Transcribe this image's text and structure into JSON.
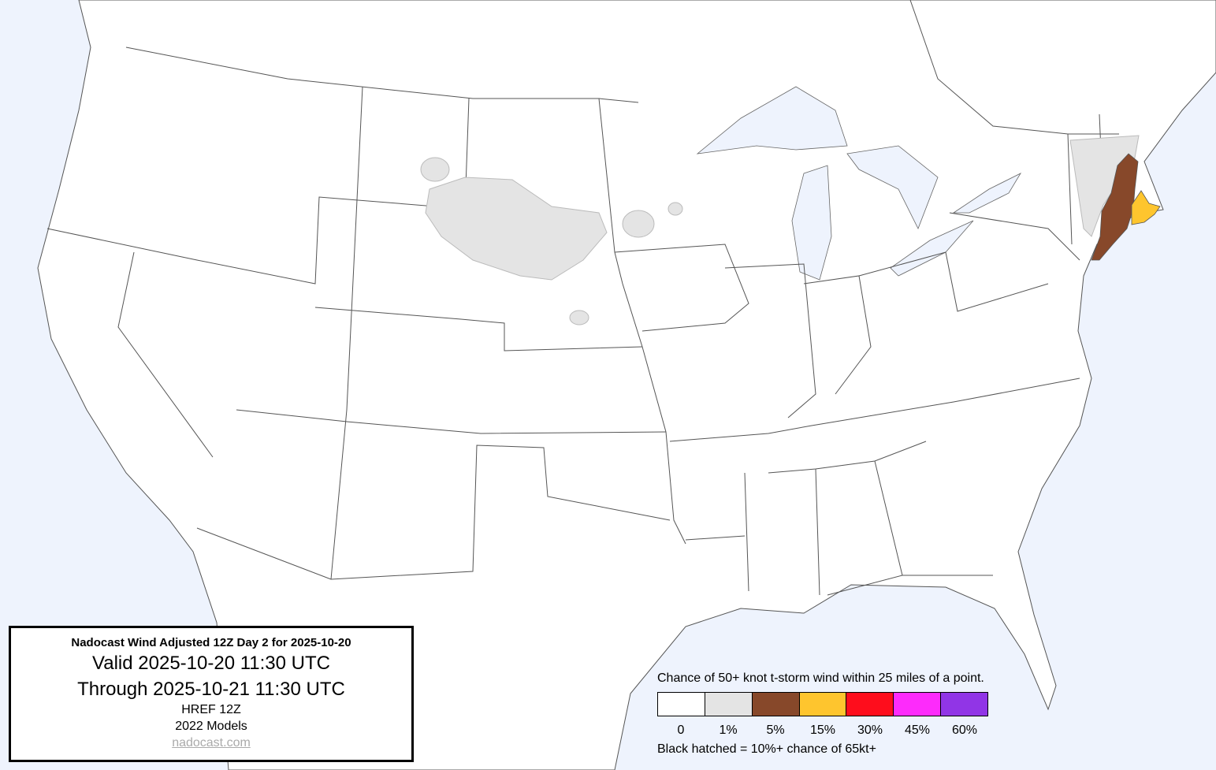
{
  "info": {
    "title": "Nadocast Wind Adjusted 12Z Day 2 for 2025-10-20",
    "valid": "Valid 2025-10-20 11:30 UTC",
    "through": "Through 2025-10-21 11:30 UTC",
    "model": "HREF 12Z",
    "models_year": "2022 Models",
    "link": "nadocast.com"
  },
  "legend": {
    "title": "Chance of 50+ knot t-storm wind within 25 miles of a point.",
    "bins": [
      {
        "label": "0",
        "color": "#ffffff"
      },
      {
        "label": "1%",
        "color": "#e4e4e4"
      },
      {
        "label": "5%",
        "color": "#87482a"
      },
      {
        "label": "15%",
        "color": "#fec52e"
      },
      {
        "label": "30%",
        "color": "#fe0d1c"
      },
      {
        "label": "45%",
        "color": "#fd2bfb"
      },
      {
        "label": "60%",
        "color": "#9135e6"
      }
    ],
    "note": "Black hatched = 10%+ chance of 65kt+"
  },
  "colors": {
    "water": "#eef3fd",
    "land": "#ffffff",
    "border": "#555555"
  }
}
